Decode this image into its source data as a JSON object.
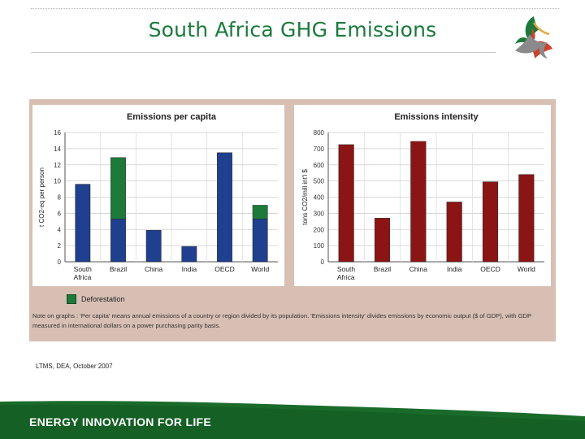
{
  "slide": {
    "title": "South Africa GHG Emissions",
    "source": "LTMS, DEA, October 2007",
    "footer": "ENERGY INNOVATION FOR LIFE",
    "logo_icon": "triskelion-logo-icon"
  },
  "colors": {
    "title": "#1a7a3c",
    "per_capita_bar": "#1f3f8f",
    "deforestation": "#1e7a3a",
    "intensity_bar": "#8b1414",
    "panel_bg": "#d8bfb4",
    "footer_green": "#1a6b2a"
  },
  "legend": {
    "deforestation": "Deforestation"
  },
  "note": "Note on graphs : 'Per capita' means annual emissions of a country or region divided by its population. 'Emissions intensity' divides emissions by economic output ($ of GDP), with GDP measured in international dollars on a power purchasing parity basis.",
  "chart_data": [
    {
      "type": "bar",
      "title": "Emissions per capita",
      "ylabel": "t CO2-eq per person",
      "xlabel": "",
      "categories": [
        "South Africa",
        "Brazil",
        "China",
        "India",
        "OECD",
        "World"
      ],
      "series": [
        {
          "values": [
            9.6,
            5.3,
            3.9,
            1.9,
            13.5,
            5.3
          ]
        },
        {
          "name": "Deforestation",
          "values": [
            0,
            7.6,
            0,
            0,
            0,
            1.7
          ]
        }
      ],
      "stacked": true,
      "ylim": [
        0,
        16
      ],
      "yticks": [
        0,
        2,
        4,
        6,
        8,
        10,
        12,
        14,
        16
      ],
      "grid": true
    },
    {
      "type": "bar",
      "title": "Emissions intensity",
      "ylabel": "tons CO2/mill int'l $",
      "xlabel": "",
      "categories": [
        "South Africa",
        "Brazil",
        "China",
        "India",
        "OECD",
        "World"
      ],
      "series": [
        {
          "values": [
            725,
            270,
            745,
            370,
            495,
            540
          ]
        }
      ],
      "ylim": [
        0,
        800
      ],
      "yticks": [
        0,
        100,
        200,
        300,
        400,
        500,
        600,
        700,
        800
      ],
      "grid": true
    }
  ]
}
